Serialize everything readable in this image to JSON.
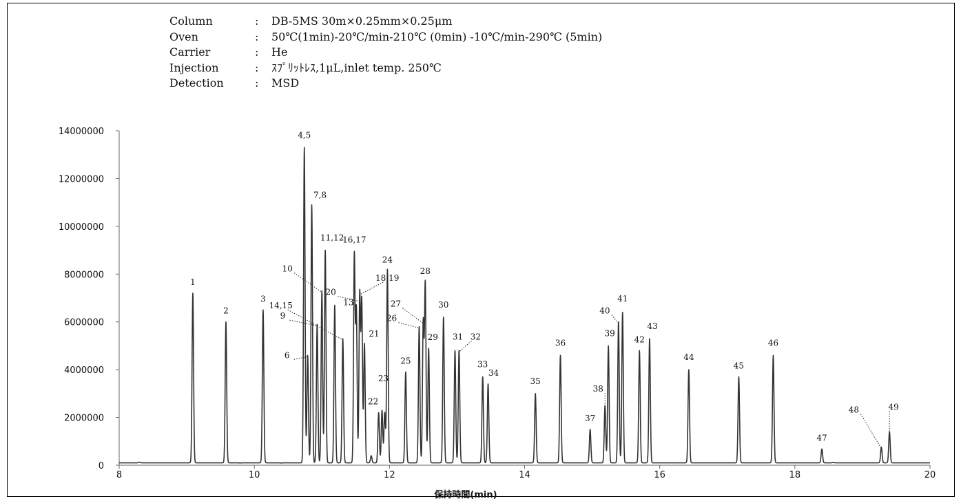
{
  "conditions": [
    {
      "label": "Column",
      "sep": ":",
      "value": "DB-5MS 30m×0.25mm×0.25μm"
    },
    {
      "label": "Oven",
      "sep": ":",
      "value": "50℃(1min)-20℃/min-210℃ (0min) -10℃/min-290℃ (5min)"
    },
    {
      "label": "Carrier",
      "sep": ":",
      "value": "He"
    },
    {
      "label": "Injection",
      "sep": ":",
      "value": "ｽﾌﾟﾘｯﾄﾚｽ,1μL,inlet temp. 250℃"
    },
    {
      "label": "Detection",
      "sep": ":",
      "value": "MSD"
    }
  ],
  "chart_data": {
    "type": "line",
    "title": "",
    "xlabel": "保持時間(min)",
    "ylabel": "",
    "xlim": [
      8,
      20
    ],
    "ylim": [
      0,
      14000000
    ],
    "x_ticks": [
      "8",
      "10",
      "12",
      "14",
      "16",
      "18",
      "20"
    ],
    "y_ticks": [
      "0",
      "2000000",
      "4000000",
      "6000000",
      "8000000",
      "10000000",
      "12000000",
      "14000000"
    ],
    "grid": false,
    "legend": "none",
    "baseline": 100000,
    "line_color": "#333333",
    "peaks": [
      {
        "rt": 8.3,
        "height": 130000
      },
      {
        "rt": 9.09,
        "height": 7200000,
        "label": "1"
      },
      {
        "rt": 9.58,
        "height": 6000000,
        "label": "2"
      },
      {
        "rt": 9.79,
        "height": 90000
      },
      {
        "rt": 10.13,
        "height": 6500000,
        "label": "3"
      },
      {
        "rt": 10.4,
        "height": 90000
      },
      {
        "rt": 10.74,
        "height": 13300000,
        "label": "4,5"
      },
      {
        "rt": 10.79,
        "height": 4600000,
        "label": "6"
      },
      {
        "rt": 10.85,
        "height": 10900000,
        "label": "7,8"
      },
      {
        "rt": 10.93,
        "height": 5900000,
        "label": "9"
      },
      {
        "rt": 11.0,
        "height": 7300000,
        "label": "10"
      },
      {
        "rt": 11.05,
        "height": 9000000,
        "label": "11,12"
      },
      {
        "rt": 11.19,
        "height": 6700000,
        "label": "13"
      },
      {
        "rt": 11.31,
        "height": 5300000,
        "label": "14,15"
      },
      {
        "rt": 11.48,
        "height": 8800000,
        "label": "16,17"
      },
      {
        "rt": 11.51,
        "height": 6500000
      },
      {
        "rt": 11.56,
        "height": 7200000,
        "label": "18,19"
      },
      {
        "rt": 11.59,
        "height": 6900000,
        "label": "20"
      },
      {
        "rt": 11.63,
        "height": 5100000,
        "label": "21"
      },
      {
        "rt": 11.73,
        "height": 400000
      },
      {
        "rt": 11.84,
        "height": 2200000,
        "label": "22"
      },
      {
        "rt": 11.89,
        "height": 2300000,
        "label": "23"
      },
      {
        "rt": 11.93,
        "height": 2200000
      },
      {
        "rt": 11.97,
        "height": 8200000,
        "label": "24"
      },
      {
        "rt": 12.24,
        "height": 3900000,
        "label": "25"
      },
      {
        "rt": 12.44,
        "height": 5800000,
        "label": "26"
      },
      {
        "rt": 12.5,
        "height": 6000000,
        "label": "27"
      },
      {
        "rt": 12.53,
        "height": 7600000,
        "label": "28"
      },
      {
        "rt": 12.58,
        "height": 4900000,
        "label": "29"
      },
      {
        "rt": 12.8,
        "height": 6200000,
        "label": "30"
      },
      {
        "rt": 12.97,
        "height": 4800000,
        "label": "31"
      },
      {
        "rt": 13.03,
        "height": 4800000,
        "label": "32"
      },
      {
        "rt": 13.38,
        "height": 3700000,
        "label": "33"
      },
      {
        "rt": 13.46,
        "height": 3400000,
        "label": "34"
      },
      {
        "rt": 14.16,
        "height": 3000000,
        "label": "35"
      },
      {
        "rt": 14.53,
        "height": 4600000,
        "label": "36"
      },
      {
        "rt": 14.97,
        "height": 1500000,
        "label": "37"
      },
      {
        "rt": 15.19,
        "height": 2500000,
        "label": "38"
      },
      {
        "rt": 15.24,
        "height": 5000000,
        "label": "39"
      },
      {
        "rt": 15.39,
        "height": 6000000,
        "label": "40"
      },
      {
        "rt": 15.45,
        "height": 6400000,
        "label": "41"
      },
      {
        "rt": 15.7,
        "height": 4800000,
        "label": "42"
      },
      {
        "rt": 15.85,
        "height": 5300000,
        "label": "43"
      },
      {
        "rt": 16.43,
        "height": 4000000,
        "label": "44"
      },
      {
        "rt": 17.17,
        "height": 3700000,
        "label": "45"
      },
      {
        "rt": 17.68,
        "height": 4600000,
        "label": "46"
      },
      {
        "rt": 18.4,
        "height": 680000,
        "label": "47"
      },
      {
        "rt": 18.57,
        "height": 120000
      },
      {
        "rt": 19.28,
        "height": 760000,
        "label": "48"
      },
      {
        "rt": 19.4,
        "height": 1400000,
        "label": "49"
      }
    ]
  }
}
